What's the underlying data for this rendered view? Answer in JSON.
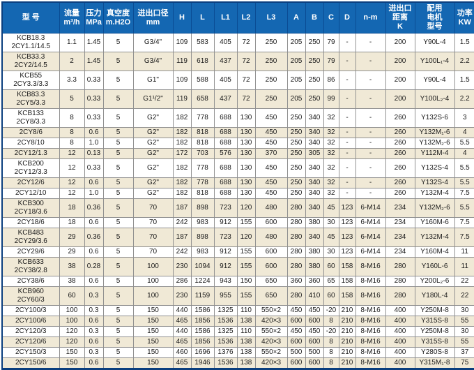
{
  "colors": {
    "header_bg": "#1467b2",
    "header_text": "#ffffff",
    "stripe_bg": "#f0e9d6",
    "grid_line": "#909090",
    "outer_border": "#0a3e7e"
  },
  "table": {
    "columns": [
      {
        "key": "model",
        "label": "型 号"
      },
      {
        "key": "flow",
        "label": "流量\nm³/h"
      },
      {
        "key": "pressure",
        "label": "压力\nMPa"
      },
      {
        "key": "vacuum",
        "label": "真空度\nm.H2O"
      },
      {
        "key": "port",
        "label": "进出口径\nmm"
      },
      {
        "key": "H",
        "label": "H"
      },
      {
        "key": "L",
        "label": "L"
      },
      {
        "key": "L1",
        "label": "L1"
      },
      {
        "key": "L2",
        "label": "L2"
      },
      {
        "key": "L3",
        "label": "L3"
      },
      {
        "key": "A",
        "label": "A"
      },
      {
        "key": "B",
        "label": "B"
      },
      {
        "key": "C",
        "label": "C"
      },
      {
        "key": "D",
        "label": "D"
      },
      {
        "key": "n_m",
        "label": "n-m"
      },
      {
        "key": "K",
        "label": "进出口\n距离\nK"
      },
      {
        "key": "motor",
        "label": "配用\n电机\n型号"
      },
      {
        "key": "power",
        "label": "功率\nKW"
      }
    ],
    "rows": [
      {
        "model": "KCB18.3\n2CY1.1/14.5",
        "cells": [
          "1.1",
          "1.45",
          "5",
          "G3/4\"",
          "109",
          "583",
          "405",
          "72",
          "250",
          "205",
          "250",
          "79",
          "-",
          "-",
          "200",
          "Y90L-4",
          "1.5"
        ]
      },
      {
        "model": "KCB33.3\n2CY2/14.5",
        "cells": [
          "2",
          "1.45",
          "5",
          "G3/4\"",
          "119",
          "618",
          "437",
          "72",
          "250",
          "205",
          "250",
          "79",
          "-",
          "-",
          "200",
          "Y100L₁-4",
          "2.2"
        ]
      },
      {
        "model": "KCB55\n2CY3.3/3.3",
        "cells": [
          "3.3",
          "0.33",
          "5",
          "G1\"",
          "109",
          "588",
          "405",
          "72",
          "250",
          "205",
          "250",
          "86",
          "-",
          "-",
          "200",
          "Y90L-4",
          "1.5"
        ]
      },
      {
        "model": "KCB83.3\n2CY5/3.3",
        "cells": [
          "5",
          "0.33",
          "5",
          "G1¹/2\"",
          "119",
          "658",
          "437",
          "72",
          "250",
          "205",
          "250",
          "99",
          "-",
          "-",
          "200",
          "Y100L₂-4",
          "2.2"
        ]
      },
      {
        "model": "KCB133\n2CY8/3.3",
        "cells": [
          "8",
          "0.33",
          "5",
          "G2\"",
          "182",
          "778",
          "688",
          "130",
          "450",
          "250",
          "340",
          "32",
          "-",
          "-",
          "260",
          "Y132S-6",
          "3"
        ]
      },
      {
        "model": "2CY8/6",
        "cells": [
          "8",
          "0.6",
          "5",
          "G2\"",
          "182",
          "818",
          "688",
          "130",
          "450",
          "250",
          "340",
          "32",
          "-",
          "-",
          "260",
          "Y132M₁-6",
          "4"
        ]
      },
      {
        "model": "2CY8/10",
        "cells": [
          "8",
          "1.0",
          "5",
          "G2\"",
          "182",
          "818",
          "688",
          "130",
          "450",
          "250",
          "340",
          "32",
          "-",
          "-",
          "260",
          "Y132M₂-6",
          "5.5"
        ]
      },
      {
        "model": "2CY12/1.3",
        "cells": [
          "12",
          "0.13",
          "5",
          "G2\"",
          "172",
          "703",
          "576",
          "130",
          "370",
          "250",
          "305",
          "32",
          "-",
          "-",
          "260",
          "Y112M-4",
          "4"
        ]
      },
      {
        "model": "KCB200\n2CY12/3.3",
        "cells": [
          "12",
          "0.33",
          "5",
          "G2\"",
          "182",
          "778",
          "688",
          "130",
          "450",
          "250",
          "340",
          "32",
          "-",
          "-",
          "260",
          "Y132S-4",
          "5.5"
        ]
      },
      {
        "model": "2CY12/6",
        "cells": [
          "12",
          "0.6",
          "5",
          "G2\"",
          "182",
          "778",
          "688",
          "130",
          "450",
          "250",
          "340",
          "32",
          "-",
          "-",
          "260",
          "Y132S-4",
          "5.5"
        ]
      },
      {
        "model": "2CY12/10",
        "cells": [
          "12",
          "1.0",
          "5",
          "G2\"",
          "182",
          "818",
          "688",
          "130",
          "450",
          "250",
          "340",
          "32",
          "-",
          "-",
          "260",
          "Y132M-4",
          "7.5"
        ]
      },
      {
        "model": "KCB300\n2CY18/3.6",
        "cells": [
          "18",
          "0.36",
          "5",
          "70",
          "187",
          "898",
          "723",
          "120",
          "480",
          "280",
          "340",
          "45",
          "123",
          "6-M14",
          "234",
          "Y132M₂-6",
          "5.5"
        ]
      },
      {
        "model": "2CY18/6",
        "cells": [
          "18",
          "0.6",
          "5",
          "70",
          "242",
          "983",
          "912",
          "155",
          "600",
          "280",
          "380",
          "30",
          "123",
          "6-M14",
          "234",
          "Y160M-6",
          "7.5"
        ]
      },
      {
        "model": "KCB483\n2CY29/3.6",
        "cells": [
          "29",
          "0.36",
          "5",
          "70",
          "187",
          "898",
          "723",
          "120",
          "480",
          "280",
          "340",
          "45",
          "123",
          "6-M14",
          "234",
          "Y132M-4",
          "7.5"
        ]
      },
      {
        "model": "2CY29/6",
        "cells": [
          "29",
          "0.6",
          "5",
          "70",
          "242",
          "983",
          "912",
          "155",
          "600",
          "280",
          "380",
          "30",
          "123",
          "6-M14",
          "234",
          "Y160M-4",
          "11"
        ]
      },
      {
        "model": "KCB633\n2CY38/2.8",
        "cells": [
          "38",
          "0.28",
          "5",
          "100",
          "230",
          "1094",
          "912",
          "155",
          "600",
          "280",
          "380",
          "60",
          "158",
          "8-M16",
          "280",
          "Y160L-6",
          "11"
        ]
      },
      {
        "model": "2CY38/6",
        "cells": [
          "38",
          "0.6",
          "5",
          "100",
          "286",
          "1224",
          "943",
          "150",
          "650",
          "360",
          "360",
          "65",
          "158",
          "8-M16",
          "280",
          "Y200L₂-6",
          "22"
        ]
      },
      {
        "model": "KCB960\n2CY60/3",
        "cells": [
          "60",
          "0.3",
          "5",
          "100",
          "230",
          "1159",
          "955",
          "155",
          "650",
          "280",
          "410",
          "60",
          "158",
          "8-M16",
          "280",
          "Y180L-4",
          "22"
        ]
      },
      {
        "model": "2CY100/3",
        "cells": [
          "100",
          "0.3",
          "5",
          "150",
          "440",
          "1586",
          "1325",
          "110",
          "550×2",
          "450",
          "450",
          "-20",
          "210",
          "8-M16",
          "400",
          "Y250M-8",
          "30"
        ]
      },
      {
        "model": "2CY100/6",
        "cells": [
          "100",
          "0.6",
          "5",
          "150",
          "465",
          "1856",
          "1536",
          "138",
          "420×3",
          "600",
          "600",
          "8",
          "210",
          "8-M16",
          "400",
          "Y315S-8",
          "55"
        ]
      },
      {
        "model": "2CY120/3",
        "cells": [
          "120",
          "0.3",
          "5",
          "150",
          "440",
          "1586",
          "1325",
          "110",
          "550×2",
          "450",
          "450",
          "-20",
          "210",
          "8-M16",
          "400",
          "Y250M-8",
          "30"
        ]
      },
      {
        "model": "2CY120/6",
        "cells": [
          "120",
          "0.6",
          "5",
          "150",
          "465",
          "1856",
          "1536",
          "138",
          "420×3",
          "600",
          "600",
          "8",
          "210",
          "8-M16",
          "400",
          "Y315S-8",
          "55"
        ]
      },
      {
        "model": "2CY150/3",
        "cells": [
          "150",
          "0.3",
          "5",
          "150",
          "460",
          "1696",
          "1376",
          "138",
          "550×2",
          "500",
          "500",
          "8",
          "210",
          "8-M16",
          "400",
          "Y280S-8",
          "37"
        ]
      },
      {
        "model": "2CY150/6",
        "cells": [
          "150",
          "0.6",
          "5",
          "150",
          "465",
          "1946",
          "1536",
          "138",
          "420×3",
          "600",
          "600",
          "8",
          "210",
          "8-M16",
          "400",
          "Y315M₁-8",
          "75"
        ]
      }
    ]
  }
}
